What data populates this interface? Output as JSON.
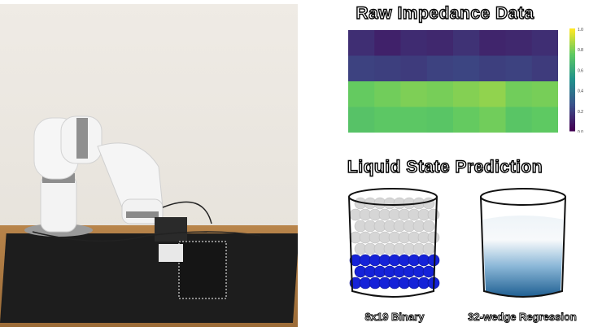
{
  "heatmap": {
    "title": "Raw Impedance Data",
    "grid_rows": 4,
    "grid_cols": 8,
    "values": [
      [
        0.14,
        0.1,
        0.13,
        0.12,
        0.15,
        0.11,
        0.12,
        0.14
      ],
      [
        0.2,
        0.19,
        0.18,
        0.2,
        0.21,
        0.19,
        0.2,
        0.18
      ],
      [
        0.76,
        0.78,
        0.8,
        0.79,
        0.81,
        0.83,
        0.78,
        0.79
      ],
      [
        0.72,
        0.74,
        0.74,
        0.73,
        0.76,
        0.78,
        0.73,
        0.75
      ]
    ],
    "colorbar_ticks": [
      "1.0",
      "0.8",
      "0.6",
      "0.4",
      "0.2",
      "0.0"
    ],
    "colorscale": [
      "#440154",
      "#3b528b",
      "#21918c",
      "#5ec962",
      "#fde725"
    ]
  },
  "prediction": {
    "title": "Liquid State Prediction",
    "binary_label": "8x19 Binary",
    "regression_label": "32-wedge Regression",
    "ball_colors": {
      "liquid": "#1522d8",
      "empty": "#d6d6d6"
    },
    "regression_colors": {
      "top": "#eef4f8",
      "mid": "#8cb8d8",
      "bottom": "#1f5f92"
    }
  }
}
